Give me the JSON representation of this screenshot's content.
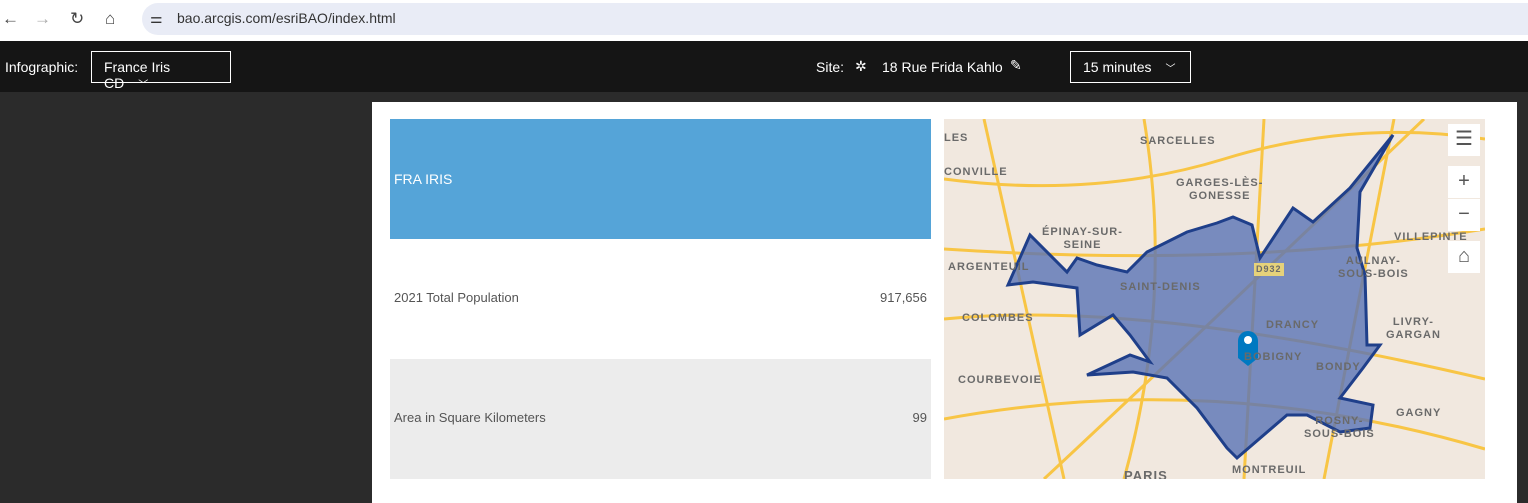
{
  "browser": {
    "url": "bao.arcgis.com/esriBAO/index.html"
  },
  "toolbar": {
    "infographic_label": "Infographic:",
    "infographic_value": "France Iris CD",
    "site_label": "Site:",
    "site_name": "18 Rue Frida Kahlo",
    "time_value": "15 minutes"
  },
  "panel": {
    "header": "FRA IRIS",
    "rows": [
      {
        "label": "2021 Total Population",
        "value": "917,656"
      },
      {
        "label": "Area in Square Kilometers",
        "value": "99"
      }
    ]
  },
  "map": {
    "labels": [
      "SARCELLES",
      "CONVILLE",
      "GARGES-LÈS-\nGONESSE",
      "ÉPINAY-SUR-\nSEINE",
      "ARGENTEUIL",
      "SAINT-DENIS",
      "COLOMBES",
      "DRANCY",
      "BOBIGNY",
      "BONDY",
      "COURBEVOIE",
      "VILLEPINTE",
      "AULNAY-\nSOUS-BOIS",
      "LIVRY-\nGARGAN",
      "GAGNY",
      "ROSNY-\nSOUS-BOIS",
      "PARIS",
      "MONTREUIL",
      "LES",
      "D932"
    ],
    "colors": {
      "area_fill": "#5a73b5",
      "area_stroke": "#1f3f8a",
      "pin": "#0079c1",
      "roads": "#f8c545"
    }
  }
}
